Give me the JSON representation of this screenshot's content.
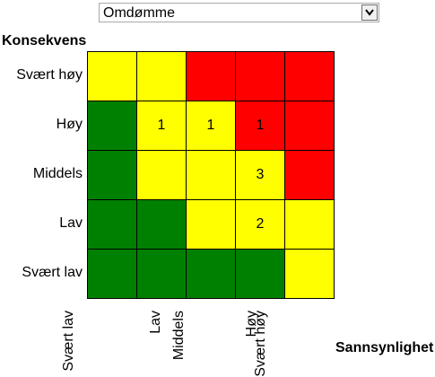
{
  "dropdown": {
    "selected": "Omdømme"
  },
  "y_axis_title": "Konsekvens",
  "x_axis_title": "Sannsynlighet",
  "rows": [
    "Svært høy",
    "Høy",
    "Middels",
    "Lav",
    "Svært lav"
  ],
  "columns": [
    "Svært lav",
    "Lav",
    "Middels",
    "Høy",
    "Svært høy"
  ],
  "colors": {
    "green": "#008000",
    "yellow": "#ffff00",
    "red": "#ff0000"
  },
  "chart_data": {
    "type": "heatmap",
    "x_categories": [
      "Svært lav",
      "Lav",
      "Middels",
      "Høy",
      "Svært høy"
    ],
    "y_categories": [
      "Svært høy",
      "Høy",
      "Middels",
      "Lav",
      "Svært lav"
    ],
    "cell_colors": [
      [
        "yellow",
        "yellow",
        "red",
        "red",
        "red"
      ],
      [
        "green",
        "yellow",
        "yellow",
        "red",
        "red"
      ],
      [
        "green",
        "yellow",
        "yellow",
        "yellow",
        "red"
      ],
      [
        "green",
        "green",
        "yellow",
        "yellow",
        "yellow"
      ],
      [
        "green",
        "green",
        "green",
        "green",
        "yellow"
      ]
    ],
    "counts": [
      [
        "",
        "",
        "",
        "",
        ""
      ],
      [
        "",
        "1",
        "1",
        "1",
        ""
      ],
      [
        "",
        "",
        "",
        "3",
        ""
      ],
      [
        "",
        "",
        "",
        "2",
        ""
      ],
      [
        "",
        "",
        "",
        "",
        ""
      ]
    ]
  }
}
